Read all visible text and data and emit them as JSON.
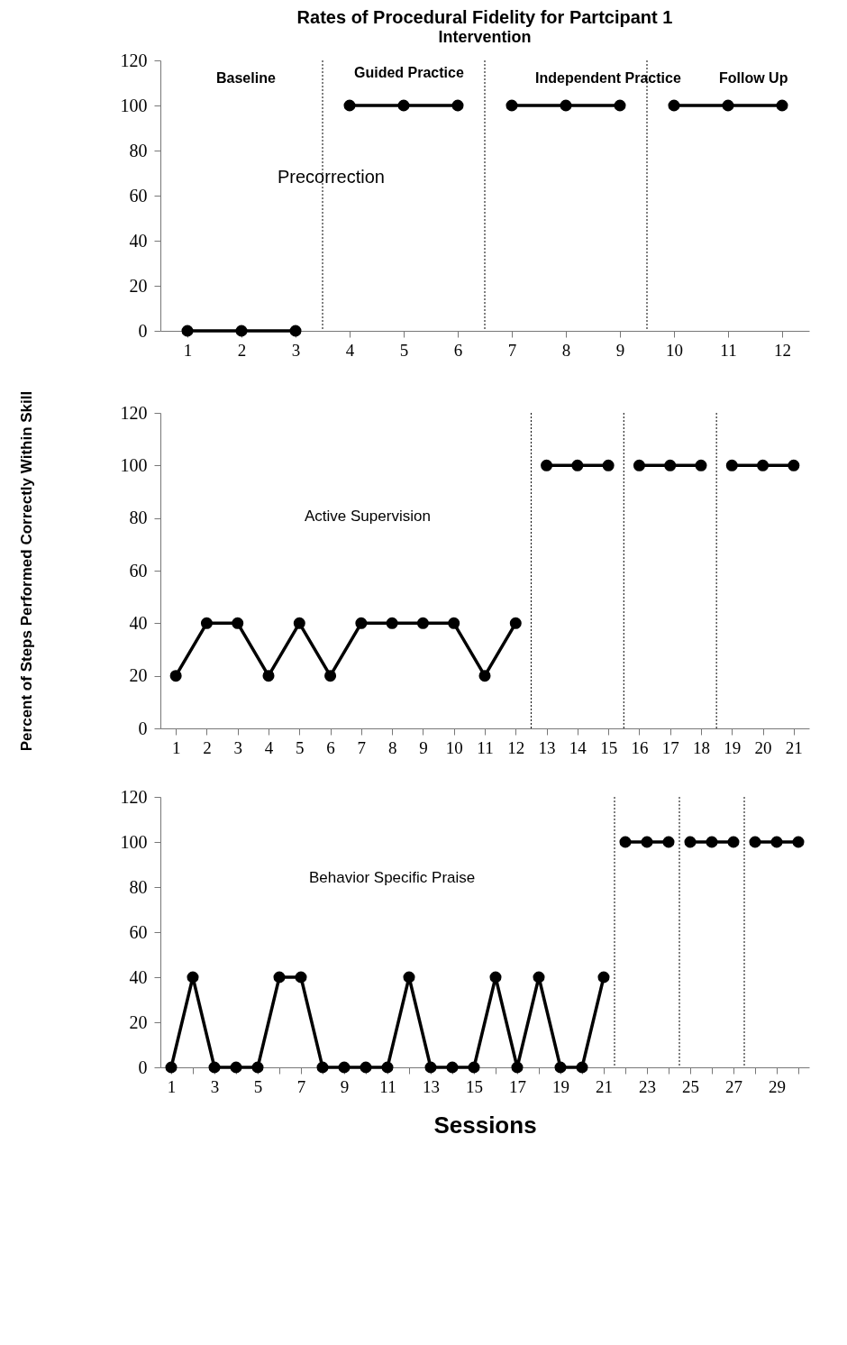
{
  "chart_data": [
    {
      "type": "line",
      "title": "Rates of Procedural Fidelity for Partcipant 1",
      "subtitle": "Intervention",
      "xlim": [
        0.5,
        12.5
      ],
      "xticks": [
        1,
        2,
        3,
        4,
        5,
        6,
        7,
        8,
        9,
        10,
        11,
        12
      ],
      "ylim": [
        0,
        120
      ],
      "yticks": [
        0,
        20,
        40,
        60,
        80,
        100,
        120
      ],
      "grid": false,
      "marker": "circle",
      "line_style": "solid",
      "series": [
        {
          "color": "#000000",
          "x": [
            1,
            2,
            3
          ],
          "values": [
            0,
            0,
            0
          ]
        },
        {
          "color": "#000000",
          "x": [
            4,
            5,
            6
          ],
          "values": [
            100,
            100,
            100
          ]
        },
        {
          "color": "#000000",
          "x": [
            7,
            8,
            9
          ],
          "values": [
            100,
            100,
            100
          ]
        },
        {
          "color": "#000000",
          "x": [
            10,
            11,
            12
          ],
          "values": [
            100,
            100,
            100
          ]
        }
      ],
      "ref_lines": [
        {
          "axis": "x",
          "value": 3.5,
          "color": "#000000",
          "line_style": "dotted"
        },
        {
          "axis": "x",
          "value": 6.5,
          "color": "#000000",
          "line_style": "dotted"
        },
        {
          "axis": "x",
          "value": 9.5,
          "color": "#000000",
          "line_style": "dotted"
        }
      ],
      "annotations": [
        "Baseline",
        "Guided Practice",
        "Independent Practice",
        "Follow Up",
        "Precorrection"
      ]
    },
    {
      "type": "line",
      "ylabel": "Percent of Steps Performed Correctly Within Skill",
      "xlim": [
        0.5,
        21.5
      ],
      "xticks": [
        1,
        2,
        3,
        4,
        5,
        6,
        7,
        8,
        9,
        10,
        11,
        12,
        13,
        14,
        15,
        16,
        17,
        18,
        19,
        20,
        21
      ],
      "ylim": [
        0,
        120
      ],
      "yticks": [
        0,
        20,
        40,
        60,
        80,
        100,
        120
      ],
      "grid": false,
      "marker": "circle",
      "line_style": "solid",
      "series": [
        {
          "color": "#000000",
          "x": [
            1,
            2,
            3,
            4,
            5,
            6,
            7,
            8,
            9,
            10,
            11,
            12
          ],
          "values": [
            20,
            40,
            40,
            20,
            40,
            20,
            40,
            40,
            40,
            40,
            20,
            40
          ]
        },
        {
          "color": "#000000",
          "x": [
            13,
            14,
            15
          ],
          "values": [
            100,
            100,
            100
          ]
        },
        {
          "color": "#000000",
          "x": [
            16,
            17,
            18
          ],
          "values": [
            100,
            100,
            100
          ]
        },
        {
          "color": "#000000",
          "x": [
            19,
            20,
            21
          ],
          "values": [
            100,
            100,
            100
          ]
        }
      ],
      "ref_lines": [
        {
          "axis": "x",
          "value": 12.5,
          "color": "#000000",
          "line_style": "dotted"
        },
        {
          "axis": "x",
          "value": 15.5,
          "color": "#000000",
          "line_style": "dotted"
        },
        {
          "axis": "x",
          "value": 18.5,
          "color": "#000000",
          "line_style": "dotted"
        }
      ],
      "annotations": [
        "Active Supervision"
      ]
    },
    {
      "type": "line",
      "xlabel": "Sessions",
      "xlim": [
        0.5,
        30.5
      ],
      "xticks": [
        1,
        {
          "value": 2,
          "label": null
        },
        3,
        {
          "value": 4,
          "label": null
        },
        5,
        {
          "value": 6,
          "label": null
        },
        7,
        {
          "value": 8,
          "label": null
        },
        9,
        {
          "value": 10,
          "label": null
        },
        11,
        {
          "value": 12,
          "label": null
        },
        13,
        {
          "value": 14,
          "label": null
        },
        15,
        {
          "value": 16,
          "label": null
        },
        17,
        {
          "value": 18,
          "label": null
        },
        19,
        {
          "value": 20,
          "label": null
        },
        21,
        {
          "value": 22,
          "label": null
        },
        23,
        {
          "value": 24,
          "label": null
        },
        25,
        {
          "value": 26,
          "label": null
        },
        27,
        {
          "value": 28,
          "label": null
        },
        29,
        {
          "value": 30,
          "label": null
        }
      ],
      "ylim": [
        0,
        120
      ],
      "yticks": [
        0,
        20,
        40,
        60,
        80,
        100,
        120
      ],
      "grid": false,
      "marker": "circle",
      "line_style": "solid",
      "series": [
        {
          "color": "#000000",
          "x": [
            1,
            2,
            3,
            4,
            5,
            6,
            7,
            8,
            9,
            10,
            11,
            12,
            13,
            14,
            15,
            16,
            17,
            18,
            19,
            20,
            21
          ],
          "values": [
            0,
            40,
            0,
            0,
            0,
            40,
            40,
            0,
            0,
            0,
            0,
            40,
            0,
            0,
            0,
            40,
            0,
            40,
            0,
            0,
            40
          ]
        },
        {
          "color": "#000000",
          "x": [
            22,
            23,
            24
          ],
          "values": [
            100,
            100,
            100
          ]
        },
        {
          "color": "#000000",
          "x": [
            25,
            26,
            27
          ],
          "values": [
            100,
            100,
            100
          ]
        },
        {
          "color": "#000000",
          "x": [
            28,
            29,
            30
          ],
          "values": [
            100,
            100,
            100
          ]
        }
      ],
      "ref_lines": [
        {
          "axis": "x",
          "value": 21.5,
          "color": "#000000",
          "line_style": "dotted"
        },
        {
          "axis": "x",
          "value": 24.5,
          "color": "#000000",
          "line_style": "dotted"
        },
        {
          "axis": "x",
          "value": 27.5,
          "color": "#000000",
          "line_style": "dotted"
        }
      ],
      "annotations": [
        "Behavior Specific Praise"
      ]
    }
  ]
}
